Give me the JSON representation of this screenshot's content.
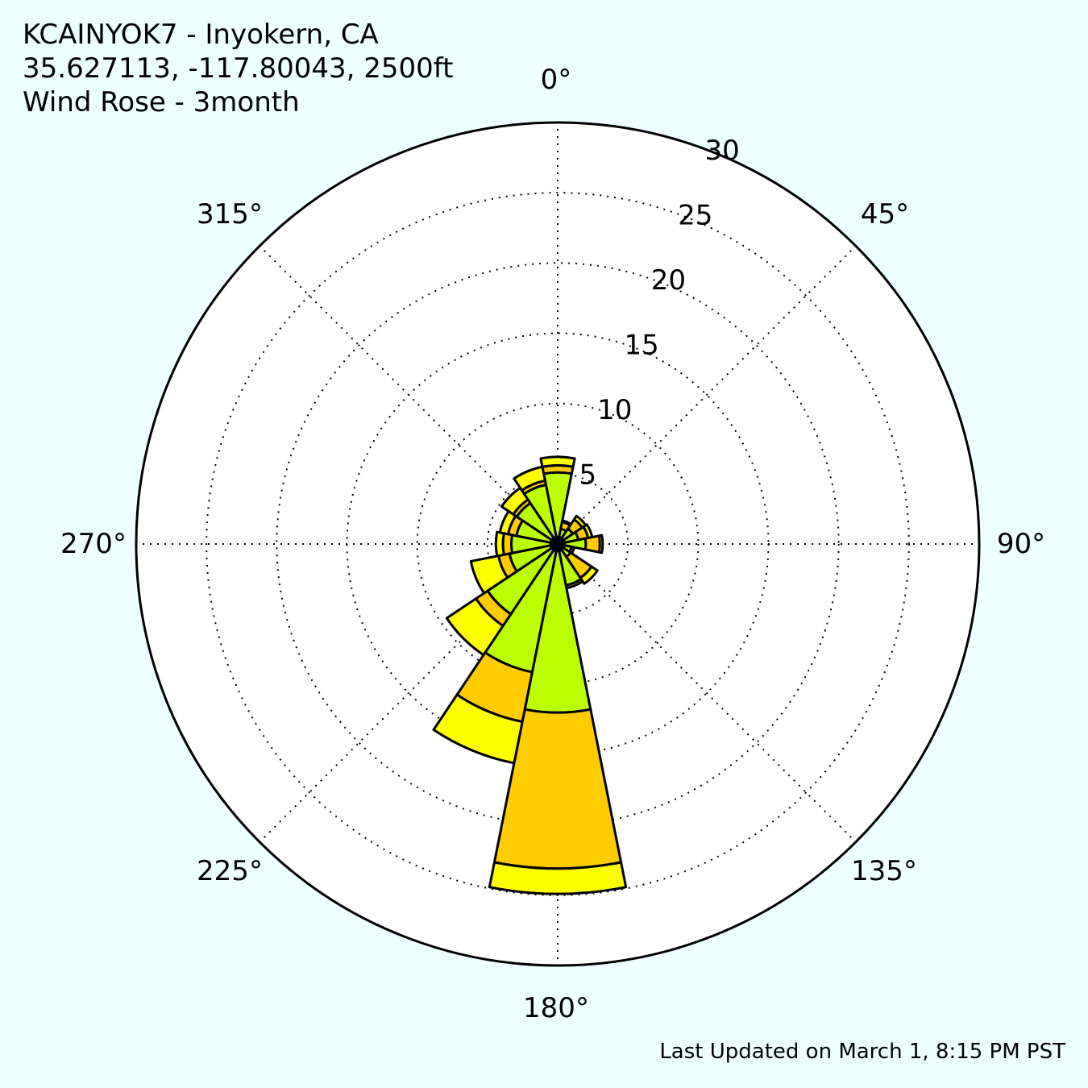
{
  "header": {
    "station": "KCAINYOK7 - Inyokern, CA",
    "coords": "35.627113, -117.80043, 2500ft",
    "subtitle": "Wind Rose - 3month"
  },
  "footer": {
    "updated": "Last Updated on March 1, 8:15 PM PST"
  },
  "chart_data": {
    "type": "windrose",
    "angle_labels": [
      "0°",
      "45°",
      "90°",
      "135°",
      "180°",
      "225°",
      "270°",
      "315°"
    ],
    "radial_ticks": [
      5,
      10,
      15,
      20,
      25,
      30
    ],
    "rlim": [
      0,
      30
    ],
    "grid": true,
    "direction_sector_width_deg": 22.5,
    "colors": {
      "calm": "#000000",
      "light": "#bbff00",
      "moderate": "#ffcc00",
      "strong": "#ffff00",
      "background": "#eeffff"
    },
    "directions_deg": [
      0,
      22.5,
      45,
      67.5,
      90,
      112.5,
      135,
      157.5,
      180,
      202.5,
      225,
      247.5,
      270,
      292.5,
      315,
      337.5
    ],
    "series": [
      {
        "color": "#000000",
        "values": [
          0.5,
          0.5,
          0.5,
          0.5,
          0.5,
          0.5,
          0.5,
          0.5,
          0.5,
          0.5,
          0.5,
          0.5,
          0.5,
          0.5,
          0.5,
          0.5
        ]
      },
      {
        "color": "#bbff00",
        "values": [
          4.6,
          0.6,
          0.8,
          1.0,
          1.5,
          0.5,
          0.6,
          2.5,
          11.5,
          8.8,
          5.5,
          3.0,
          2.8,
          2.5,
          3.0,
          3.8
        ]
      },
      {
        "color": "#ffcc00",
        "values": [
          0.5,
          0.5,
          0.8,
          0.7,
          1.0,
          0.2,
          1.8,
          0.2,
          11.1,
          3.6,
          1.0,
          0.8,
          0.6,
          0.6,
          0.3,
          0.3
        ]
      },
      {
        "color": "#ffff00",
        "values": [
          0.6,
          0.1,
          0.3,
          0.3,
          0.2,
          0.0,
          0.5,
          0.0,
          1.8,
          3.0,
          2.5,
          2.0,
          0.5,
          0.6,
          1.0,
          1.0
        ]
      }
    ]
  }
}
